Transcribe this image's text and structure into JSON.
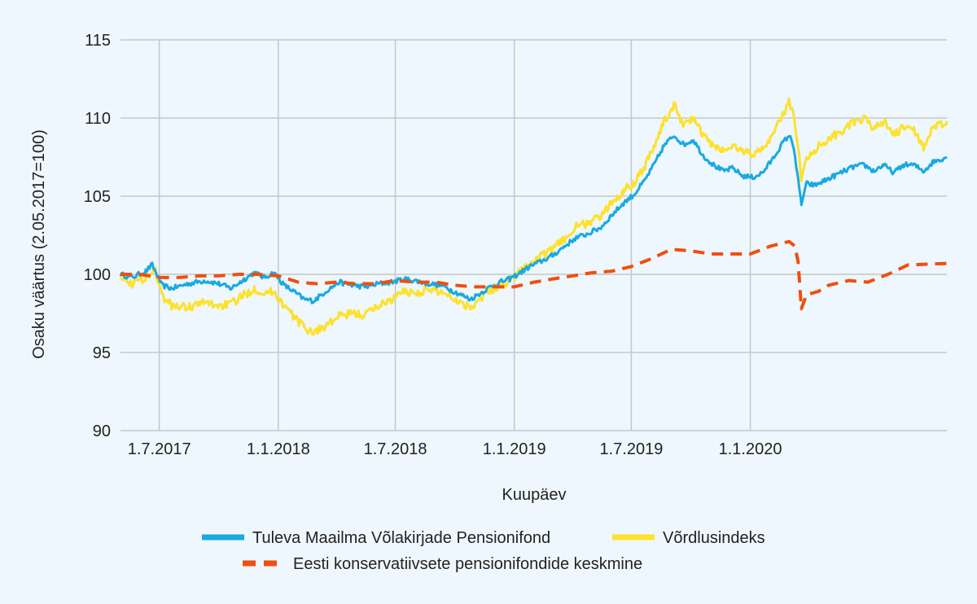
{
  "chart_data": {
    "type": "line",
    "title": "",
    "xlabel": "Kuupäev",
    "ylabel": "Osaku väärtus (2.05.2017=100)",
    "ylim": [
      90,
      115
    ],
    "yticks": [
      "90",
      "95",
      "100",
      "105",
      "110",
      "115"
    ],
    "xlim": [
      "2017-05-02",
      "2020-10-31"
    ],
    "xticks": [
      {
        "date": "2017-07-01",
        "label": "1.7.2017"
      },
      {
        "date": "2018-01-01",
        "label": "1.1.2018"
      },
      {
        "date": "2018-07-01",
        "label": "1.7.2018"
      },
      {
        "date": "2019-01-01",
        "label": "1.1.2019"
      },
      {
        "date": "2019-07-01",
        "label": "1.7.2019"
      },
      {
        "date": "2020-01-01",
        "label": "1.1.2020"
      }
    ],
    "grid": true,
    "legend_position": "bottom",
    "series": [
      {
        "name": "Tuleva Maailma Võlakirjade Pensionifond",
        "color": "#1aa9df",
        "style": "solid",
        "points": [
          [
            "2017-05-02",
            100.0
          ],
          [
            "2017-05-20",
            99.8
          ],
          [
            "2017-06-10",
            100.2
          ],
          [
            "2017-06-20",
            100.6
          ],
          [
            "2017-07-05",
            99.3
          ],
          [
            "2017-07-20",
            99.1
          ],
          [
            "2017-08-15",
            99.4
          ],
          [
            "2017-09-10",
            99.6
          ],
          [
            "2017-10-01",
            99.4
          ],
          [
            "2017-10-20",
            99.1
          ],
          [
            "2017-11-10",
            99.7
          ],
          [
            "2017-11-25",
            100.1
          ],
          [
            "2017-12-10",
            99.8
          ],
          [
            "2017-12-25",
            100.1
          ],
          [
            "2018-01-10",
            99.3
          ],
          [
            "2018-01-25",
            98.9
          ],
          [
            "2018-02-10",
            98.4
          ],
          [
            "2018-02-25",
            98.3
          ],
          [
            "2018-03-15",
            98.9
          ],
          [
            "2018-04-05",
            99.5
          ],
          [
            "2018-04-25",
            99.3
          ],
          [
            "2018-05-15",
            99.2
          ],
          [
            "2018-06-05",
            99.4
          ],
          [
            "2018-06-25",
            99.5
          ],
          [
            "2018-07-15",
            99.7
          ],
          [
            "2018-08-01",
            99.6
          ],
          [
            "2018-08-20",
            99.4
          ],
          [
            "2018-09-10",
            99.3
          ],
          [
            "2018-09-25",
            99.0
          ],
          [
            "2018-10-10",
            98.7
          ],
          [
            "2018-10-25",
            98.4
          ],
          [
            "2018-11-10",
            98.8
          ],
          [
            "2018-11-25",
            99.2
          ],
          [
            "2018-12-10",
            99.5
          ],
          [
            "2018-12-25",
            99.7
          ],
          [
            "2019-01-10",
            100.1
          ],
          [
            "2019-01-25",
            100.5
          ],
          [
            "2019-02-10",
            100.8
          ],
          [
            "2019-03-01",
            101.2
          ],
          [
            "2019-03-20",
            101.8
          ],
          [
            "2019-04-05",
            102.3
          ],
          [
            "2019-04-25",
            102.6
          ],
          [
            "2019-05-15",
            103.0
          ],
          [
            "2019-06-01",
            103.8
          ],
          [
            "2019-06-20",
            104.6
          ],
          [
            "2019-07-05",
            105.1
          ],
          [
            "2019-07-20",
            105.9
          ],
          [
            "2019-08-05",
            107.0
          ],
          [
            "2019-08-20",
            108.2
          ],
          [
            "2019-09-05",
            108.9
          ],
          [
            "2019-09-20",
            108.3
          ],
          [
            "2019-10-05",
            108.6
          ],
          [
            "2019-10-20",
            107.6
          ],
          [
            "2019-11-05",
            107.0
          ],
          [
            "2019-11-20",
            106.6
          ],
          [
            "2019-12-05",
            106.8
          ],
          [
            "2019-12-20",
            106.3
          ],
          [
            "2020-01-05",
            106.2
          ],
          [
            "2020-01-20",
            106.5
          ],
          [
            "2020-02-05",
            107.4
          ],
          [
            "2020-02-20",
            108.4
          ],
          [
            "2020-03-01",
            108.9
          ],
          [
            "2020-03-08",
            108.2
          ],
          [
            "2020-03-15",
            106.0
          ],
          [
            "2020-03-20",
            104.5
          ],
          [
            "2020-03-28",
            105.8
          ],
          [
            "2020-04-10",
            105.7
          ],
          [
            "2020-04-25",
            106.0
          ],
          [
            "2020-05-10",
            106.3
          ],
          [
            "2020-05-25",
            106.6
          ],
          [
            "2020-06-10",
            106.9
          ],
          [
            "2020-06-25",
            107.0
          ],
          [
            "2020-07-10",
            106.6
          ],
          [
            "2020-07-25",
            107.0
          ],
          [
            "2020-08-10",
            106.5
          ],
          [
            "2020-08-25",
            107.0
          ],
          [
            "2020-09-10",
            107.0
          ],
          [
            "2020-09-25",
            106.6
          ],
          [
            "2020-10-10",
            107.2
          ],
          [
            "2020-10-31",
            107.5
          ]
        ]
      },
      {
        "name": "Võrdlusindeks",
        "color": "#fde12d",
        "style": "solid",
        "points": [
          [
            "2017-05-02",
            100.0
          ],
          [
            "2017-05-20",
            99.4
          ],
          [
            "2017-06-10",
            99.8
          ],
          [
            "2017-06-25",
            100.3
          ],
          [
            "2017-07-05",
            98.6
          ],
          [
            "2017-07-20",
            98.0
          ],
          [
            "2017-08-15",
            97.9
          ],
          [
            "2017-09-10",
            98.2
          ],
          [
            "2017-10-01",
            98.0
          ],
          [
            "2017-10-20",
            98.1
          ],
          [
            "2017-11-10",
            98.7
          ],
          [
            "2017-11-25",
            99.1
          ],
          [
            "2017-12-10",
            98.8
          ],
          [
            "2017-12-25",
            98.9
          ],
          [
            "2018-01-10",
            98.0
          ],
          [
            "2018-01-25",
            97.3
          ],
          [
            "2018-02-10",
            96.6
          ],
          [
            "2018-02-25",
            96.3
          ],
          [
            "2018-03-15",
            96.7
          ],
          [
            "2018-04-05",
            97.3
          ],
          [
            "2018-04-25",
            97.5
          ],
          [
            "2018-05-15",
            97.4
          ],
          [
            "2018-06-05",
            98.0
          ],
          [
            "2018-06-25",
            98.4
          ],
          [
            "2018-07-15",
            98.9
          ],
          [
            "2018-08-01",
            98.8
          ],
          [
            "2018-08-20",
            99.0
          ],
          [
            "2018-09-10",
            98.9
          ],
          [
            "2018-09-25",
            98.6
          ],
          [
            "2018-10-10",
            98.2
          ],
          [
            "2018-10-25",
            97.9
          ],
          [
            "2018-11-10",
            98.5
          ],
          [
            "2018-11-25",
            99.0
          ],
          [
            "2018-12-10",
            99.3
          ],
          [
            "2018-12-25",
            99.6
          ],
          [
            "2019-01-10",
            100.2
          ],
          [
            "2019-01-25",
            100.7
          ],
          [
            "2019-02-10",
            101.1
          ],
          [
            "2019-03-01",
            101.6
          ],
          [
            "2019-03-20",
            102.3
          ],
          [
            "2019-04-05",
            103.0
          ],
          [
            "2019-04-25",
            103.3
          ],
          [
            "2019-05-15",
            103.7
          ],
          [
            "2019-06-01",
            104.6
          ],
          [
            "2019-06-20",
            105.4
          ],
          [
            "2019-07-05",
            105.9
          ],
          [
            "2019-07-20",
            106.8
          ],
          [
            "2019-08-05",
            108.2
          ],
          [
            "2019-08-20",
            109.7
          ],
          [
            "2019-09-05",
            110.8
          ],
          [
            "2019-09-20",
            109.6
          ],
          [
            "2019-10-05",
            110.0
          ],
          [
            "2019-10-20",
            108.9
          ],
          [
            "2019-11-05",
            108.2
          ],
          [
            "2019-11-20",
            107.9
          ],
          [
            "2019-12-05",
            108.2
          ],
          [
            "2019-12-20",
            107.9
          ],
          [
            "2020-01-05",
            107.7
          ],
          [
            "2020-01-20",
            108.0
          ],
          [
            "2020-02-05",
            109.0
          ],
          [
            "2020-02-20",
            110.2
          ],
          [
            "2020-03-01",
            111.0
          ],
          [
            "2020-03-08",
            110.3
          ],
          [
            "2020-03-15",
            108.2
          ],
          [
            "2020-03-20",
            106.0
          ],
          [
            "2020-03-28",
            107.4
          ],
          [
            "2020-04-10",
            108.0
          ],
          [
            "2020-04-25",
            108.5
          ],
          [
            "2020-05-10",
            108.9
          ],
          [
            "2020-05-25",
            109.3
          ],
          [
            "2020-06-10",
            109.7
          ],
          [
            "2020-06-25",
            109.9
          ],
          [
            "2020-07-10",
            109.4
          ],
          [
            "2020-07-25",
            109.8
          ],
          [
            "2020-08-10",
            108.9
          ],
          [
            "2020-08-25",
            109.4
          ],
          [
            "2020-09-10",
            109.2
          ],
          [
            "2020-09-25",
            108.2
          ],
          [
            "2020-10-10",
            109.3
          ],
          [
            "2020-10-31",
            109.8
          ]
        ]
      },
      {
        "name": "Eesti konservatiivsete pensionifondide keskmine",
        "color": "#f04e0f",
        "style": "dashed",
        "points": [
          [
            "2017-05-02",
            100.0
          ],
          [
            "2017-06-01",
            100.0
          ],
          [
            "2017-07-01",
            99.8
          ],
          [
            "2017-08-01",
            99.8
          ],
          [
            "2017-09-01",
            99.9
          ],
          [
            "2017-10-01",
            99.9
          ],
          [
            "2017-11-01",
            100.0
          ],
          [
            "2017-12-01",
            100.0
          ],
          [
            "2018-01-01",
            99.9
          ],
          [
            "2018-02-01",
            99.5
          ],
          [
            "2018-03-01",
            99.4
          ],
          [
            "2018-04-01",
            99.5
          ],
          [
            "2018-05-01",
            99.4
          ],
          [
            "2018-06-01",
            99.4
          ],
          [
            "2018-07-01",
            99.6
          ],
          [
            "2018-08-01",
            99.5
          ],
          [
            "2018-09-01",
            99.5
          ],
          [
            "2018-10-01",
            99.3
          ],
          [
            "2018-11-01",
            99.2
          ],
          [
            "2018-12-01",
            99.2
          ],
          [
            "2019-01-01",
            99.2
          ],
          [
            "2019-02-01",
            99.5
          ],
          [
            "2019-03-01",
            99.7
          ],
          [
            "2019-04-01",
            99.9
          ],
          [
            "2019-05-01",
            100.1
          ],
          [
            "2019-06-01",
            100.2
          ],
          [
            "2019-07-01",
            100.5
          ],
          [
            "2019-08-01",
            101.0
          ],
          [
            "2019-09-01",
            101.6
          ],
          [
            "2019-10-01",
            101.5
          ],
          [
            "2019-11-01",
            101.3
          ],
          [
            "2019-12-01",
            101.3
          ],
          [
            "2020-01-01",
            101.3
          ],
          [
            "2020-02-01",
            101.8
          ],
          [
            "2020-03-01",
            102.1
          ],
          [
            "2020-03-10",
            101.8
          ],
          [
            "2020-03-15",
            100.8
          ],
          [
            "2020-03-20",
            97.8
          ],
          [
            "2020-03-28",
            98.7
          ],
          [
            "2020-04-15",
            98.9
          ],
          [
            "2020-05-01",
            99.3
          ],
          [
            "2020-06-01",
            99.6
          ],
          [
            "2020-07-01",
            99.5
          ],
          [
            "2020-08-01",
            100.0
          ],
          [
            "2020-09-01",
            100.6
          ],
          [
            "2020-10-31",
            100.7
          ]
        ]
      }
    ]
  }
}
